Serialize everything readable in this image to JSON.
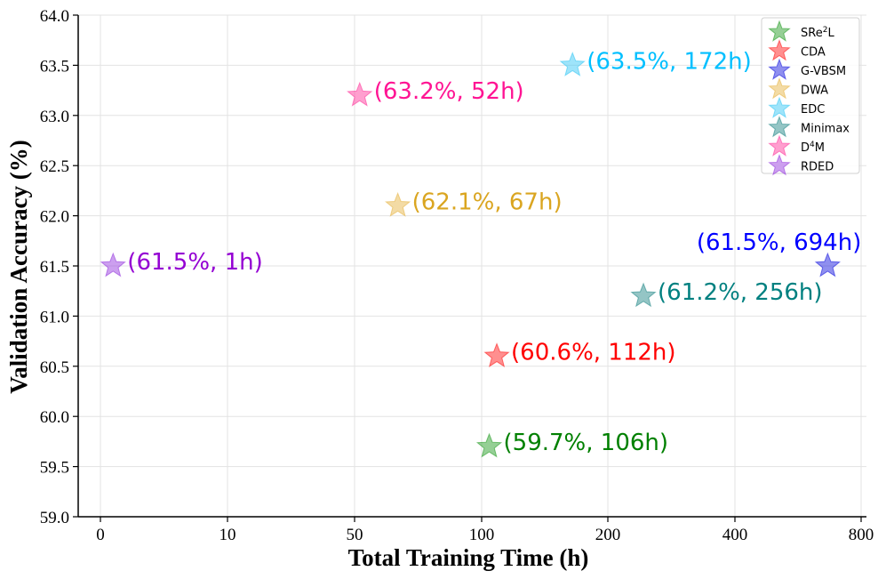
{
  "chart_data": {
    "type": "scatter",
    "xlabel": "Total Training Time (h)",
    "ylabel": "Validation Accuracy (%)",
    "x_ticks": [
      "0",
      "10",
      "50",
      "100",
      "200",
      "400",
      "800"
    ],
    "ylim": [
      59.0,
      64.0
    ],
    "y_ticks": [
      "59.0",
      "59.5",
      "60.0",
      "60.5",
      "61.0",
      "61.5",
      "62.0",
      "62.5",
      "63.0",
      "63.5",
      "64.0"
    ],
    "grid": true,
    "legend_position": "top-right",
    "series": [
      {
        "name": "SRe²L",
        "name_base": "SRe",
        "name_sup": "2",
        "name_tail": "L",
        "color": "#2ca02c",
        "x": 106,
        "y": 59.7,
        "label": "(59.7%, 106h)",
        "label_color": "#008000"
      },
      {
        "name": "CDA",
        "color": "#ff1f1f",
        "x": 112,
        "y": 60.6,
        "label": "(60.6%, 112h)",
        "label_color": "#ff0000"
      },
      {
        "name": "G-VBSM",
        "color": "#1f1fe0",
        "x": 694,
        "y": 61.5,
        "label": "(61.5%, 694h)",
        "label_color": "#0000ff"
      },
      {
        "name": "DWA",
        "color": "#e8b84b",
        "x": 67,
        "y": 62.1,
        "label": "(62.1%, 67h)",
        "label_color": "#daa520"
      },
      {
        "name": "EDC",
        "color": "#3dc9f5",
        "x": 172,
        "y": 63.5,
        "label": "(63.5%, 172h)",
        "label_color": "#00bfff"
      },
      {
        "name": "Minimax",
        "color": "#2a8c8c",
        "x": 256,
        "y": 61.2,
        "label": "(61.2%, 256h)",
        "label_color": "#008080"
      },
      {
        "name": "D⁴M",
        "name_base": "D",
        "name_sup": "4",
        "name_tail": "M",
        "color": "#ff3fa0",
        "x": 52,
        "y": 63.2,
        "label": "(63.2%, 52h)",
        "label_color": "#ff1493"
      },
      {
        "name": "RDED",
        "color": "#9a3fe0",
        "x": 1,
        "y": 61.5,
        "label": "(61.5%, 1h)",
        "label_color": "#9400d3"
      }
    ]
  }
}
